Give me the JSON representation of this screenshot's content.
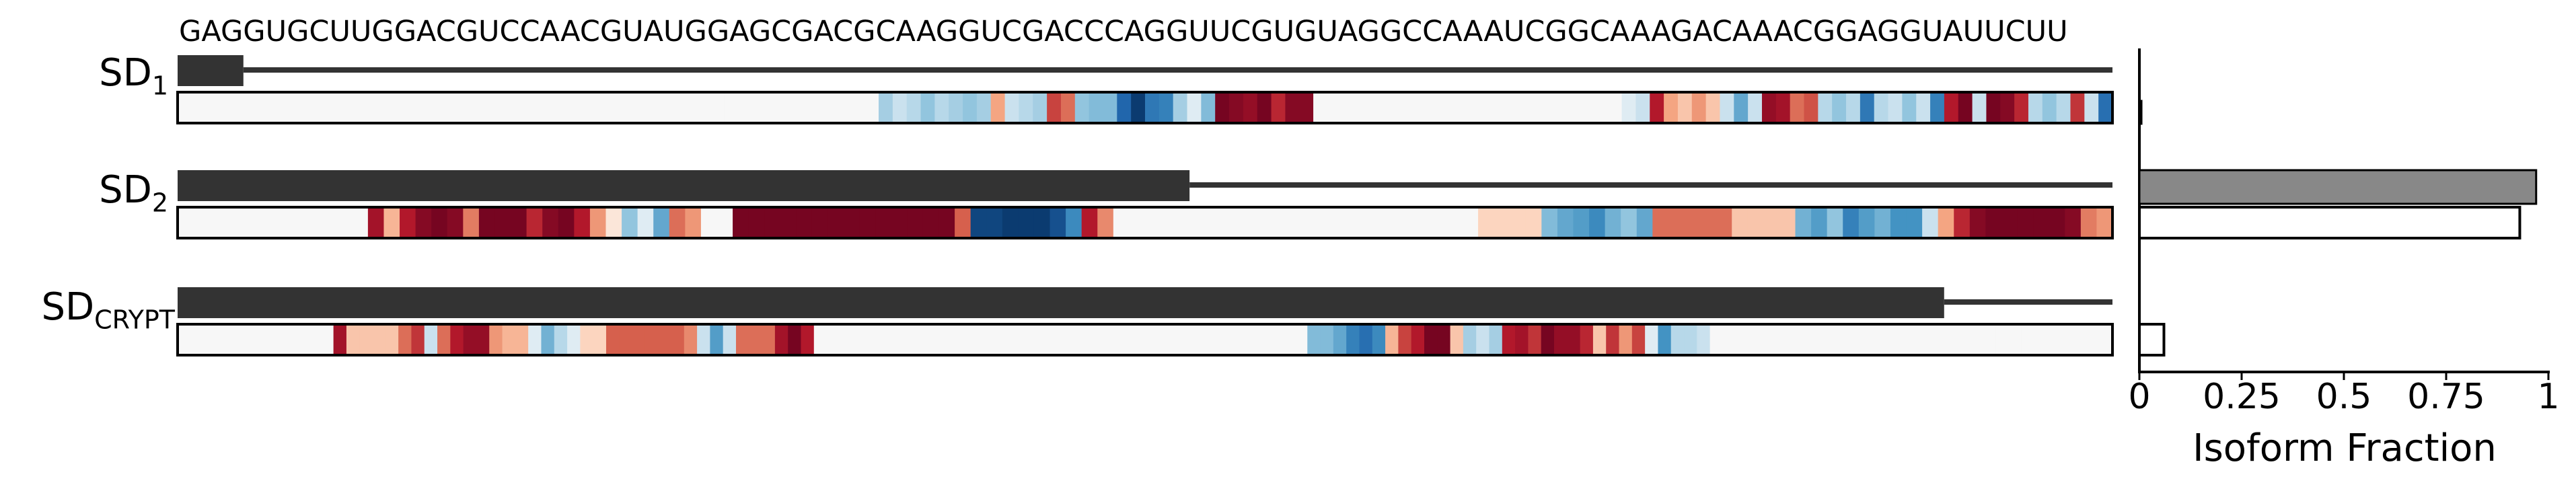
{
  "sequence": "GAGGUGCUUGGACGUCCAACGUAUGGAGCGACGCAAGGUCGACCCAGGUUCGUGUAGGCCAAAUCGGCAAAGACAAACGGAGGUAUUCUU",
  "rows": [
    {
      "label_main": "SD",
      "label_sub": "1",
      "exon_fraction": 0.034,
      "isoform_fraction_a": 0.005,
      "isoform_fraction_b": 0.0,
      "heat": "0,0,0,0,0,0,0,0,0,0,0,0,0,0,0,0,0,0,0,0,0,0,0,0,0,0,0,0,0,0,0,0,0,0,0,0,0,0,0,0,0,0,0,0,0,0,0,0,0,0,-0.2,-0.1,-0.15,-0.25,-0.15,-0.2,-0.25,-0.2,0.25,-0.1,-0.15,-0.2,0.6,0.45,-0.25,-0.3,-0.3,-0.75,-0.95,-0.65,-0.6,-0.2,-0.05,-0.3,0.95,0.9,0.85,0.95,0.7,0.9,0.9,0,0,0,0,0,0,0,0,0,0,0,0,0,0,0,0,0,0,0,0,0,0,-0.05,-0.1,0.75,0.25,0.15,0.3,0.15,-0.1,-0.4,-0.1,0.85,0.8,0.45,0.55,-0.15,-0.25,-0.15,-0.65,-0.15,-0.1,-0.25,-0.1,-0.6,0.75,0.95,-0.1,0.95,0.9,0.7,-0.15,-0.25,-0.15,0.65,-0.1,-0.7"
    },
    {
      "label_main": "SD",
      "label_sub": "2",
      "exon_fraction": 0.523,
      "isoform_fraction_a": 0.97,
      "isoform_fraction_b": 0.93,
      "heat": "0,0,0,0,0,0,0,0,0,0,0,0,0.8,0.2,0.75,0.9,0.95,0.9,0.4,0.95,0.95,0.95,0.7,0.9,0.95,0.75,0.3,0.05,-0.25,-0.05,-0.4,0.45,0.3,0,0,0.95,0.95,0.95,0.95,0.95,0.95,0.95,0.95,0.95,0.95,0.95,0.95,0.95,0.95,0.5,-0.9,-0.9,-0.95,-0.95,-0.95,-0.85,-0.55,0.75,0.35,0,0,0,0,0,0,0,0,0,0,0,0,0,0,0,0,0,0,0,0,0,0,0,0.1,0.1,0.1,0.1,-0.3,-0.4,-0.45,-0.55,-0.35,-0.25,-0.4,0.45,0.45,0.45,0.45,0.45,0.15,0.15,0.15,0.15,-0.35,-0.45,-0.25,-0.6,-0.45,-0.35,-0.5,-0.5,-0.1,0.25,0.7,0.9,0.95,0.95,0.95,0.95,0.95,0.9,0.4,0.3"
    },
    {
      "label_main": "SD",
      "label_sub": "CRYPT",
      "exon_fraction": 0.913,
      "isoform_fraction_a": 0.0,
      "isoform_fraction_b": 0.06,
      "heat": "0,0,0,0,0,0,0,0,0,0,0,0,0.8,0.15,0.15,0.15,0.15,0.45,0.65,-0.1,0.45,0.75,0.85,0.85,0.3,0.2,0.2,-0.05,-0.35,-0.15,-0.05,0.1,0.1,0.5,0.5,0.5,0.5,0.5,0.5,0.35,-0.1,-0.45,-0.1,0.45,0.45,0.45,0.8,0.95,0.75,0,0,0,0,0,0,0,0,0,0,0,0,0,0,0,0,0,0,0,0,0,0,0,0,0,0,0,0,0,0,0,0,0,0,0,0,0,0,-0.3,-0.3,-0.4,-0.6,-0.7,-0.55,0.2,0.6,0.75,0.95,0.95,0.15,-0.2,-0.1,-0.2,0.75,0.8,0.65,0.95,0.85,0.85,0.7,0.15,0.65,0.3,0.6,-0.05,-0.5,-0.15,-0.15,-0.1,0,0,0,0,0,0,0,0,0,0,0,0,0,0,0,0,0,0,0,0,0,0,0,0,0,0,0,0,0,0,0"
    }
  ],
  "chart_data": {
    "type": "bar",
    "categories": [
      "SD1",
      "SD2",
      "SDCRYPT"
    ],
    "series": [
      {
        "values": [
          0.005,
          0.97,
          0.0
        ]
      },
      {
        "values": [
          0.0,
          0.93,
          0.06
        ]
      }
    ],
    "xlabel": "Isoform Fraction",
    "ylabel": "",
    "xlim": [
      0,
      1
    ],
    "ticks": [
      0,
      0.25,
      0.5,
      0.75,
      1
    ],
    "tick_labels": [
      "0",
      "0.25",
      "0.5",
      "0.75",
      "1"
    ],
    "orientation": "horizontal"
  },
  "colors": {
    "exon_bar": "#333333",
    "predicted_bar": "#888888",
    "observed_bar": "#ffffff",
    "heat_neg": "#053061",
    "heat_pos": "#67001f"
  }
}
